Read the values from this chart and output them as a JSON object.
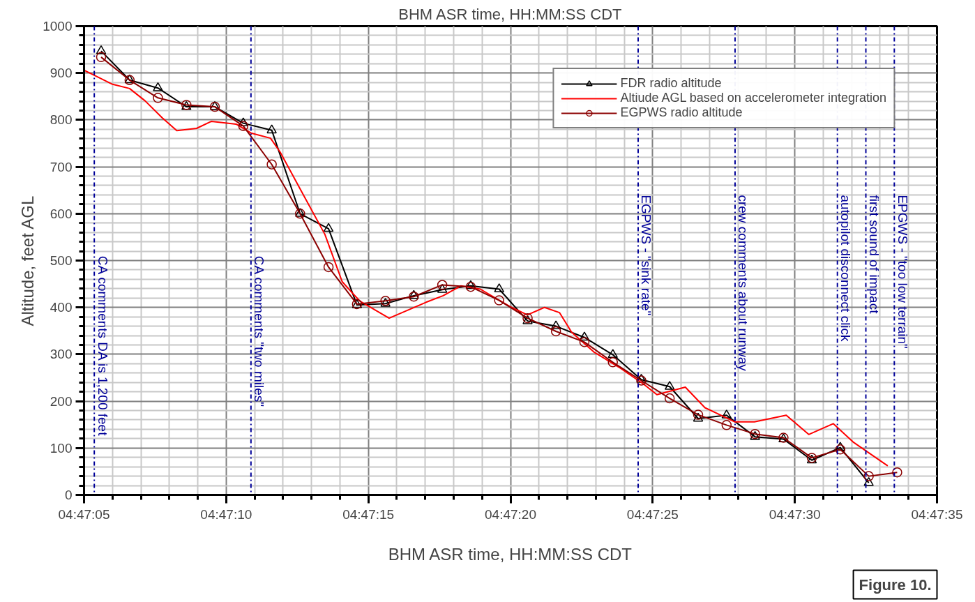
{
  "chart_data": {
    "type": "line",
    "title": "BHM ASR time, HH:MM:SS CDT",
    "xlabel": "BHM ASR time, HH:MM:SS CDT",
    "ylabel": "Altitude, feet AGL",
    "xlim": [
      4.784722,
      4.793056
    ],
    "ylim": [
      0,
      1000
    ],
    "xticks": [
      {
        "value": 4.784722,
        "label": "04:47:05"
      },
      {
        "value": 4.786111,
        "label": "04:47:10"
      },
      {
        "value": 4.7875,
        "label": "04:47:15"
      },
      {
        "value": 4.788889,
        "label": "04:47:20"
      },
      {
        "value": 4.790278,
        "label": "04:47:25"
      },
      {
        "value": 4.791667,
        "label": "04:47:30"
      },
      {
        "value": 4.793056,
        "label": "04:47:35"
      }
    ],
    "yticks": [
      0,
      100,
      200,
      300,
      400,
      500,
      600,
      700,
      800,
      900,
      1000
    ],
    "grid": true,
    "legend": "top right",
    "series": [
      {
        "name": "FDR radio altitude",
        "color": "#000000",
        "marker": "triangle",
        "x": [
          4.784889,
          4.785167,
          4.785444,
          4.785722,
          4.786,
          4.786278,
          4.786556,
          4.786833,
          4.787111,
          4.787389,
          4.787667,
          4.787944,
          4.788222,
          4.7885,
          4.788778,
          4.789056,
          4.789333,
          4.789611,
          4.789889,
          4.790167,
          4.790444,
          4.790722,
          4.791,
          4.791278,
          4.791556,
          4.791833,
          4.792111,
          4.792389
        ],
        "values": [
          947,
          885,
          868,
          828,
          828,
          793,
          778,
          600,
          568,
          405,
          408,
          425,
          438,
          446,
          439,
          371,
          360,
          336,
          299,
          246,
          231,
          163,
          170,
          124,
          119,
          74,
          101,
          26
        ]
      },
      {
        "name": "Altiude AGL based on accelerometer integration",
        "color": "#ff0000",
        "marker": "none",
        "x": [
          4.784722,
          4.785,
          4.785167,
          4.785317,
          4.785483,
          4.785628,
          4.785822,
          4.785967,
          4.786208,
          4.786353,
          4.786544,
          4.786639,
          4.786833,
          4.787075,
          4.787244,
          4.787414,
          4.787703,
          4.788064,
          4.788231,
          4.788403,
          4.788594,
          4.788883,
          4.789053,
          4.789222,
          4.789367,
          4.789486,
          4.789703,
          4.789944,
          4.790186,
          4.790319,
          4.790597,
          4.790789,
          4.791078,
          4.791272,
          4.791583,
          4.791803,
          4.792042,
          4.792236,
          4.792575
        ],
        "values": [
          906,
          876,
          867,
          841,
          805,
          777,
          782,
          797,
          791,
          772,
          761,
          731,
          653,
          556,
          455,
          414,
          377,
          411,
          425,
          446,
          439,
          402,
          384,
          400,
          389,
          347,
          305,
          273,
          237,
          214,
          230,
          186,
          156,
          156,
          170,
          129,
          152,
          113,
          62
        ]
      },
      {
        "name": "EGPWS radio altitude",
        "color": "#8b0000",
        "marker": "circle",
        "x": [
          4.784889,
          4.785167,
          4.785444,
          4.785722,
          4.786,
          4.786278,
          4.786556,
          4.786833,
          4.787111,
          4.787389,
          4.787667,
          4.787944,
          4.788222,
          4.7885,
          4.788778,
          4.789056,
          4.789333,
          4.789611,
          4.789889,
          4.790167,
          4.790444,
          4.790722,
          4.791,
          4.791278,
          4.791556,
          4.791833,
          4.792111,
          4.792389,
          4.792667
        ],
        "values": [
          934,
          885,
          847,
          832,
          828,
          787,
          705,
          600,
          486,
          407,
          414,
          423,
          448,
          444,
          415,
          377,
          349,
          326,
          283,
          244,
          206,
          171,
          149,
          130,
          122,
          79,
          97,
          40,
          48
        ]
      }
    ],
    "ref_lines": [
      {
        "axis": "x",
        "value": 4.784822,
        "label": "CA comments DA is 1,200 feet",
        "color": "#000099",
        "line_style": "dashdot"
      },
      {
        "axis": "x",
        "value": 4.786353,
        "label": "CA comments \"two miles\"",
        "color": "#000099",
        "line_style": "dashdot"
      },
      {
        "axis": "x",
        "value": 4.790136,
        "label": "EGPWS - \"sink rate\"",
        "color": "#000099",
        "line_style": "dashdot"
      },
      {
        "axis": "x",
        "value": 4.791083,
        "label": "crew comments about runway",
        "color": "#000099",
        "line_style": "dashdot"
      },
      {
        "axis": "x",
        "value": 4.792083,
        "label": "autopilot disconnect click",
        "color": "#000099",
        "line_style": "dashdot"
      },
      {
        "axis": "x",
        "value": 4.792361,
        "label": "first sound of impact",
        "color": "#000099",
        "line_style": "dashdot"
      },
      {
        "axis": "x",
        "value": 4.792639,
        "label": "EPGWS - \"too low terrain\"",
        "color": "#000099",
        "line_style": "dashdot"
      }
    ],
    "annotations": [
      "Figure 10."
    ]
  }
}
